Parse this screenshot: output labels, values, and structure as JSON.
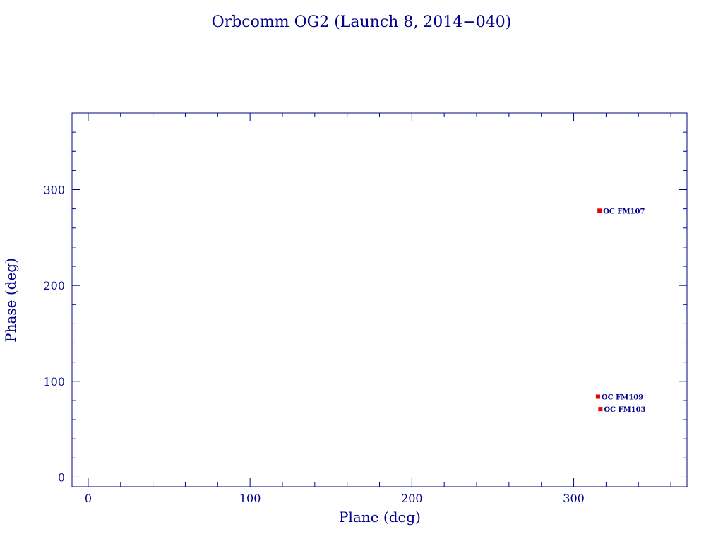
{
  "colors": {
    "axis": "#00008b",
    "text": "#00008b",
    "marker_fill": "#ff0000",
    "marker_stroke": "#cc0000",
    "background": "#ffffff"
  },
  "chart_data": {
    "type": "scatter",
    "title": "Orbcomm OG2 (Launch 8, 2014−040)",
    "xlabel": "Plane (deg)",
    "ylabel": "Phase (deg)",
    "xlim": [
      -10,
      370
    ],
    "ylim": [
      -10,
      380
    ],
    "xticks": [
      0,
      100,
      200,
      300
    ],
    "yticks": [
      0,
      100,
      200,
      300
    ],
    "x_minor_step": 20,
    "y_minor_step": 20,
    "grid": false,
    "legend": "none",
    "points": [
      {
        "label": "OC FM107",
        "x": 316,
        "y": 278
      },
      {
        "label": "OC FM109",
        "x": 315,
        "y": 84
      },
      {
        "label": "OC FM103",
        "x": 316.5,
        "y": 71
      }
    ]
  }
}
